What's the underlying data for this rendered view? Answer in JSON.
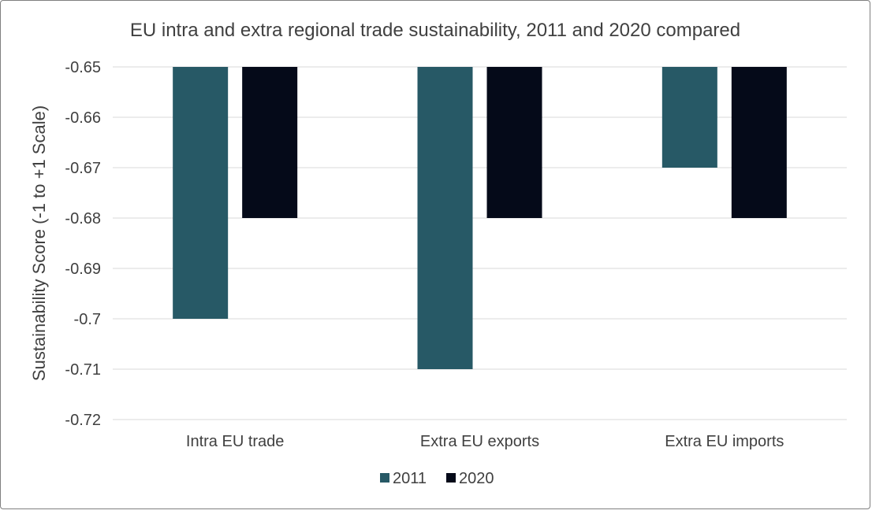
{
  "chart_data": {
    "type": "bar",
    "title": "EU intra and extra regional trade sustainability, 2011 and 2020 compared",
    "xlabel": "",
    "ylabel": "Sustainability Score (-1 to +1 Scale)",
    "categories": [
      "Intra EU trade",
      "Extra EU exports",
      "Extra EU imports"
    ],
    "series": [
      {
        "name": "2011",
        "color": "#275966",
        "values": [
          -0.7,
          -0.71,
          -0.67
        ]
      },
      {
        "name": "2020",
        "color": "#050a19",
        "values": [
          -0.68,
          -0.68,
          -0.68
        ]
      }
    ],
    "ylim": [
      -0.72,
      -0.65
    ],
    "yticks": [
      -0.65,
      -0.66,
      -0.67,
      -0.68,
      -0.69,
      -0.7,
      -0.71,
      -0.72
    ],
    "ytick_labels": [
      "-0.65",
      "-0.66",
      "-0.67",
      "-0.68",
      "-0.69",
      "-0.7",
      "-0.71",
      "-0.72"
    ],
    "grid": true,
    "legend": "bottom"
  }
}
